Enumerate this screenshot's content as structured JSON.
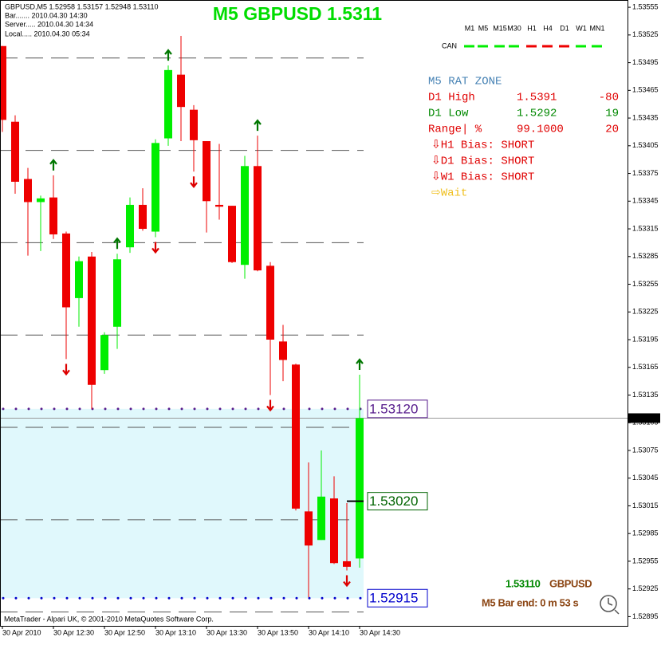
{
  "chart_data": {
    "type": "candlestick",
    "title": "M5 GBPUSD 1.5311",
    "info": [
      "GBPUSD,M5  1.52958 1.53157 1.52948 1.53110",
      "Bar....... 2010.04.30 14:30",
      "Server..... 2010.04.30 14:34",
      "Local..... 2010.04.30 05:34"
    ],
    "categories": [
      "30 Apr 2010",
      null,
      null,
      null,
      "30 Apr 12:30",
      null,
      null,
      null,
      "30 Apr 12:50",
      null,
      null,
      null,
      "30 Apr 13:10",
      null,
      null,
      null,
      "30 Apr 13:30",
      null,
      null,
      null,
      "30 Apr 13:50",
      null,
      null,
      null,
      "30 Apr 14:10",
      null,
      null,
      null,
      "30 Apr 14:30"
    ],
    "open": [
      1.53513,
      1.53431,
      1.53369,
      1.53344,
      1.53349,
      1.5331,
      1.5324,
      1.53285,
      1.53162,
      1.53209,
      1.53295,
      1.53341,
      1.53312,
      1.53413,
      1.53482,
      1.53444,
      1.5341,
      1.53341,
      1.5334,
      1.53276,
      1.53383,
      1.53275,
      1.53193,
      1.53168,
      1.53009,
      1.52978,
      1.53023,
      1.52955,
      1.52958
    ],
    "high": [
      1.53513,
      1.53438,
      1.53381,
      1.53351,
      1.53373,
      1.53312,
      1.53285,
      1.5329,
      1.53203,
      1.53288,
      1.53349,
      1.53359,
      1.53412,
      1.53492,
      1.53524,
      1.53449,
      1.5341,
      1.53407,
      1.5334,
      1.53394,
      1.53416,
      1.53279,
      1.53211,
      1.53169,
      1.53062,
      1.53075,
      1.53047,
      1.53018,
      1.53157
    ],
    "low": [
      1.5342,
      1.53353,
      1.53286,
      1.53291,
      1.53304,
      1.53174,
      1.53209,
      1.5312,
      1.53158,
      1.53185,
      1.53289,
      1.53313,
      1.53306,
      1.53405,
      1.5341,
      1.53377,
      1.53311,
      1.53325,
      1.53278,
      1.53261,
      1.53269,
      1.53135,
      1.5315,
      1.5301,
      1.52916,
      1.52978,
      1.52952,
      1.52945,
      1.52948
    ],
    "close": [
      1.53433,
      1.53366,
      1.53344,
      1.53348,
      1.53309,
      1.5323,
      1.5328,
      1.53146,
      1.532,
      1.53282,
      1.53341,
      1.53315,
      1.53408,
      1.53487,
      1.53447,
      1.53411,
      1.53345,
      1.53339,
      1.53279,
      1.53383,
      1.5327,
      1.53195,
      1.53173,
      1.53012,
      1.52972,
      1.53025,
      1.52953,
      1.52949,
      1.5311
    ],
    "signals": [
      null,
      null,
      null,
      null,
      "up",
      "down",
      null,
      null,
      null,
      "up",
      null,
      null,
      "down",
      "up",
      null,
      "down",
      null,
      null,
      null,
      null,
      "up",
      "down",
      null,
      null,
      null,
      null,
      null,
      "down",
      "up"
    ],
    "up_color": "#00ee00",
    "down_color": "#ee0000",
    "ylim": [
      1.52885,
      1.53562
    ],
    "yticks": [
      1.52895,
      1.52925,
      1.52955,
      1.52985,
      1.53015,
      1.53045,
      1.53075,
      1.53105,
      1.53135,
      1.53165,
      1.53195,
      1.53225,
      1.53255,
      1.53285,
      1.53315,
      1.53345,
      1.53375,
      1.53405,
      1.53435,
      1.53465,
      1.53495,
      1.53525,
      1.53555
    ],
    "levels": [
      1.535,
      1.534,
      1.533,
      1.532,
      1.531,
      1.53,
      1.529
    ],
    "zone_high": {
      "value": 1.5312,
      "label": "1.53120"
    },
    "zone_mid": {
      "value": 1.5302,
      "label": "1.53020"
    },
    "zone_low": {
      "value": 1.52915,
      "label": "1.52915"
    },
    "current_price": {
      "value": 1.5311,
      "label": "1.53110"
    },
    "timeframes": [
      {
        "name": "M1",
        "color": "#00ee00"
      },
      {
        "name": "M5",
        "color": "#00ee00"
      },
      {
        "name": "M15",
        "color": "#00ee00"
      },
      {
        "name": "M30",
        "color": "#00ee00"
      },
      {
        "name": "H1",
        "color": "#ee0000"
      },
      {
        "name": "H4",
        "color": "#ee0000"
      },
      {
        "name": "D1",
        "color": "#ee0000"
      },
      {
        "name": "W1",
        "color": "#00ee00"
      },
      {
        "name": "MN1",
        "color": "#00ee00"
      }
    ],
    "can_label": "CAN",
    "panel": {
      "title": "M5 RAT ZONE",
      "rows": [
        [
          "D1 High",
          "1.5391",
          "-80"
        ],
        [
          "D1 Low",
          "1.5292",
          "19"
        ],
        [
          "Range| %",
          "99.1000",
          "20"
        ]
      ],
      "bias": [
        "⇩H1 Bias: SHORT",
        "⇩D1 Bias: SHORT",
        "⇩W1 Bias: SHORT"
      ],
      "signal": "⇨Wait"
    },
    "status": {
      "price": "1.53110",
      "symbol": "GBPUSD",
      "bar_end": "M5 Bar end: 0 m 53 s"
    },
    "footer": "MetaTrader - Alpari UK, © 2001-2010 MetaQuotes Software Corp."
  }
}
